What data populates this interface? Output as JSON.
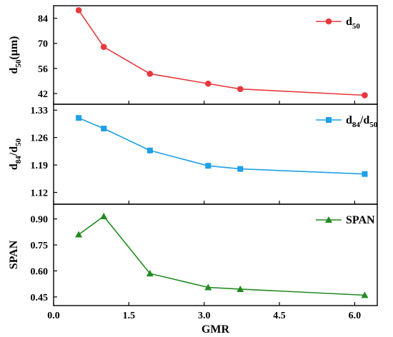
{
  "chart_data": {
    "type": "line",
    "xlabel": "GMR",
    "xlim": [
      0,
      6.45
    ],
    "xticks": [
      "0.0",
      "1.5",
      "3.0",
      "4.5",
      "6.0"
    ],
    "xtick_values": [
      0,
      1.5,
      3.0,
      4.5,
      6.0
    ],
    "x": [
      0.5,
      1.0,
      1.92,
      3.08,
      3.72,
      6.2
    ],
    "panels": [
      {
        "ylabel_main": "d",
        "ylabel_sub": "50",
        "ylabel_tail": "(μm)",
        "ylim": [
          36,
          91
        ],
        "yticks": [
          "42",
          "56",
          "70",
          "84"
        ],
        "ytick_values": [
          42,
          56,
          70,
          84
        ],
        "series": {
          "name_main": "d",
          "name_sub": "50",
          "name_tail": "",
          "color": "#e8383d",
          "marker": "circle",
          "values": [
            88.5,
            68.0,
            53.0,
            47.5,
            44.5,
            41.0
          ]
        },
        "legend": "top-right"
      },
      {
        "ylabel_main": "d",
        "ylabel_sub": "84",
        "ylabel_tail": "/d",
        "ylabel_sub2": "50",
        "ylim": [
          1.09,
          1.345
        ],
        "yticks": [
          "1.12",
          "1.19",
          "1.26",
          "1.33"
        ],
        "ytick_values": [
          1.12,
          1.19,
          1.26,
          1.33
        ],
        "series": {
          "name_main": "d",
          "name_sub": "84",
          "name_tail": "/d",
          "name_sub2": "50",
          "color": "#1e9fe8",
          "marker": "square",
          "values": [
            1.31,
            1.283,
            1.227,
            1.188,
            1.18,
            1.167
          ]
        },
        "legend": "top-right"
      },
      {
        "ylabel_main": "SPAN",
        "ylim": [
          0.4,
          0.985
        ],
        "yticks": [
          "0.45",
          "0.60",
          "0.75",
          "0.90"
        ],
        "ytick_values": [
          0.45,
          0.6,
          0.75,
          0.9
        ],
        "series": {
          "name_main": "SPAN",
          "color": "#218a21",
          "marker": "triangle",
          "values": [
            0.81,
            0.915,
            0.585,
            0.505,
            0.495,
            0.46
          ]
        },
        "legend": "top-right"
      }
    ]
  }
}
